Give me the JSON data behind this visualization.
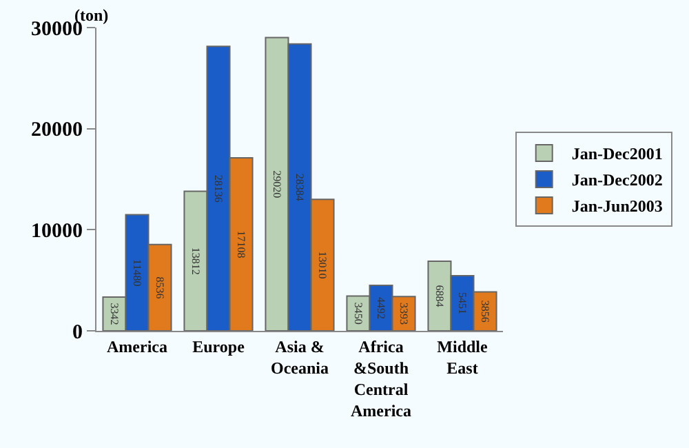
{
  "chart_data": {
    "type": "bar",
    "ylabel": "(ton)",
    "categories": [
      "America",
      "Europe",
      "Asia &\nOceania",
      "Africa\n&South\nCentral\nAmerica",
      "Middle\nEast"
    ],
    "series": [
      {
        "name": "Jan-Dec2001",
        "color": "#b9d0b4",
        "values": [
          3342,
          13812,
          29020,
          3450,
          6884
        ]
      },
      {
        "name": "Jan-Dec2002",
        "color": "#1a5cc8",
        "values": [
          11480,
          28136,
          28384,
          4492,
          5451
        ]
      },
      {
        "name": "Jan-Jun2003",
        "color": "#e07a1c",
        "values": [
          8536,
          17108,
          13010,
          3393,
          3856
        ]
      }
    ],
    "ylim": [
      0,
      30000
    ],
    "yticks": [
      0,
      10000,
      20000,
      30000
    ],
    "grid": false,
    "legend": "right",
    "data_labels": true
  }
}
